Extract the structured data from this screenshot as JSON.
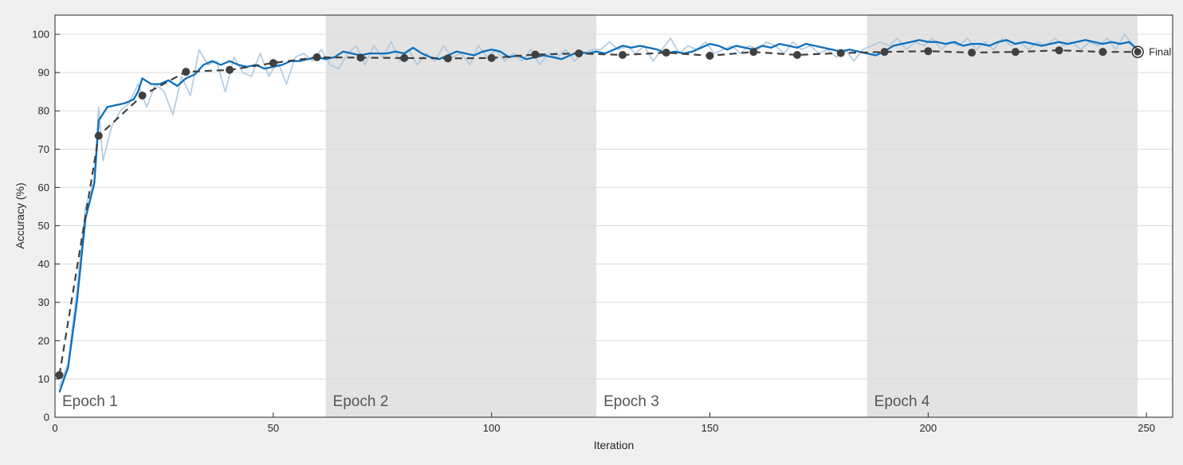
{
  "chart_data": {
    "type": "line",
    "xlabel": "Iteration",
    "ylabel": "Accuracy (%)",
    "xlim": [
      0,
      256
    ],
    "ylim": [
      0,
      105
    ],
    "xticks": [
      0,
      50,
      100,
      150,
      200,
      250
    ],
    "yticks": [
      0,
      10,
      20,
      30,
      40,
      50,
      60,
      70,
      80,
      90,
      100
    ],
    "grid": true,
    "epochs": [
      {
        "label": "Epoch 1",
        "start": 0,
        "end": 62,
        "shaded": false
      },
      {
        "label": "Epoch 2",
        "start": 62,
        "end": 124,
        "shaded": true
      },
      {
        "label": "Epoch 3",
        "start": 124,
        "end": 186,
        "shaded": false
      },
      {
        "label": "Epoch 4",
        "start": 186,
        "end": 248,
        "shaded": true
      }
    ],
    "series": [
      {
        "style": "raw",
        "color": "#a9c6dd",
        "x": [
          1,
          3,
          5,
          7,
          9,
          10,
          11,
          13,
          15,
          17,
          19,
          21,
          23,
          25,
          27,
          29,
          31,
          33,
          35,
          37,
          39,
          41,
          43,
          45,
          47,
          49,
          51,
          53,
          55,
          57,
          59,
          61,
          63,
          65,
          67,
          69,
          71,
          73,
          75,
          77,
          79,
          81,
          83,
          85,
          87,
          89,
          91,
          93,
          95,
          97,
          99,
          101,
          103,
          105,
          107,
          109,
          111,
          113,
          115,
          117,
          119,
          121,
          123,
          125,
          127,
          129,
          131,
          133,
          135,
          137,
          139,
          141,
          143,
          145,
          147,
          149,
          151,
          153,
          155,
          157,
          159,
          161,
          163,
          165,
          167,
          169,
          171,
          173,
          175,
          177,
          179,
          181,
          183,
          185,
          187,
          189,
          191,
          193,
          195,
          197,
          199,
          201,
          203,
          205,
          207,
          209,
          211,
          213,
          215,
          217,
          219,
          221,
          223,
          225,
          227,
          229,
          231,
          233,
          235,
          237,
          239,
          241,
          243,
          245,
          247,
          248
        ],
        "y": [
          8,
          14,
          33,
          55,
          62,
          81,
          67,
          76,
          80,
          82,
          87,
          81,
          87,
          85,
          79,
          89,
          84,
          96,
          92,
          93,
          85,
          94,
          90,
          89,
          95,
          89,
          93,
          87,
          94,
          95,
          93,
          96,
          92,
          91,
          95,
          97,
          92,
          97,
          94,
          98,
          93,
          96,
          92,
          95,
          93,
          97,
          94,
          95,
          92,
          97,
          94,
          96,
          93,
          95,
          93,
          96,
          92,
          95,
          94,
          96,
          93,
          95,
          96,
          96,
          98,
          96,
          97,
          95,
          97,
          93,
          96,
          99,
          95,
          97,
          96,
          98,
          95,
          96,
          97,
          95,
          97,
          96,
          98,
          97,
          95,
          98,
          96,
          97,
          95,
          96,
          94,
          96,
          93,
          96,
          97,
          98,
          97,
          99,
          96,
          98,
          97,
          99,
          96,
          98,
          97,
          99,
          96,
          98,
          96,
          99,
          97,
          98,
          96,
          98,
          97,
          99,
          97,
          98,
          96,
          98,
          97,
          99,
          96,
          100,
          97,
          96
        ]
      },
      {
        "style": "smoothed",
        "color": "#0b6fbd",
        "x": [
          1,
          3,
          5,
          7,
          9,
          10,
          12,
          14,
          16,
          18,
          19,
          20,
          22,
          24,
          26,
          28,
          30,
          32,
          34,
          36,
          38,
          40,
          42,
          44,
          46,
          48,
          50,
          52,
          54,
          56,
          58,
          60,
          62,
          64,
          66,
          68,
          70,
          72,
          74,
          76,
          78,
          80,
          82,
          84,
          86,
          88,
          90,
          92,
          94,
          96,
          98,
          100,
          102,
          104,
          106,
          108,
          110,
          112,
          114,
          116,
          118,
          120,
          122,
          124,
          126,
          128,
          130,
          132,
          134,
          136,
          138,
          140,
          142,
          144,
          146,
          148,
          150,
          152,
          154,
          156,
          158,
          160,
          162,
          164,
          166,
          168,
          170,
          172,
          174,
          176,
          178,
          180,
          182,
          184,
          186,
          188,
          190,
          192,
          194,
          196,
          198,
          200,
          202,
          204,
          206,
          208,
          210,
          212,
          214,
          216,
          218,
          220,
          222,
          224,
          226,
          228,
          230,
          232,
          234,
          236,
          238,
          240,
          242,
          244,
          246,
          248
        ],
        "y": [
          6.5,
          13,
          30,
          52,
          61,
          77.5,
          81,
          81.5,
          82,
          83,
          85,
          88.5,
          87,
          87,
          88,
          86.5,
          88.5,
          89.5,
          92,
          93,
          92,
          93,
          92,
          91.5,
          92,
          91,
          91.5,
          92,
          93,
          93,
          93.5,
          94,
          93.5,
          94,
          95.5,
          95,
          94.5,
          95,
          95,
          95,
          95.5,
          95,
          96.5,
          95,
          94,
          93.5,
          94.5,
          95.5,
          95,
          94.5,
          95.5,
          96,
          95.5,
          94,
          94.5,
          93.5,
          94,
          94.5,
          94,
          93.5,
          94.5,
          95.5,
          95,
          95.5,
          95,
          96,
          97,
          96.5,
          97,
          96.5,
          96,
          95,
          95.5,
          95,
          95.5,
          96.5,
          97.5,
          97,
          96,
          97,
          96.5,
          96,
          97,
          96.5,
          97.5,
          97,
          96.5,
          97.5,
          97,
          96.5,
          96,
          95.5,
          96,
          95.5,
          95,
          94.5,
          95.5,
          97,
          97.5,
          98,
          98.5,
          98,
          98,
          97.5,
          98,
          97,
          97.5,
          97.5,
          97,
          98,
          98.5,
          97.5,
          98,
          97.5,
          97,
          97.5,
          98,
          97.5,
          98,
          98.5,
          98,
          97.5,
          98,
          97.5,
          98,
          96
        ]
      },
      {
        "style": "validation",
        "color": "#404040",
        "x": [
          1,
          10,
          20,
          30,
          40,
          50,
          60,
          70,
          80,
          90,
          100,
          110,
          120,
          130,
          140,
          150,
          160,
          170,
          180,
          190,
          200,
          210,
          220,
          230,
          240,
          248
        ],
        "y": [
          11,
          73.5,
          84,
          90.2,
          90.7,
          92.5,
          94,
          93.9,
          93.8,
          93.7,
          93.8,
          94.7,
          95,
          94.6,
          95.2,
          94.4,
          95.4,
          94.6,
          95.1,
          95.4,
          95.6,
          95.2,
          95.4,
          95.8,
          95.4,
          95.4
        ]
      }
    ],
    "final": {
      "label": "Final",
      "x": 248,
      "y": 95.4
    }
  }
}
